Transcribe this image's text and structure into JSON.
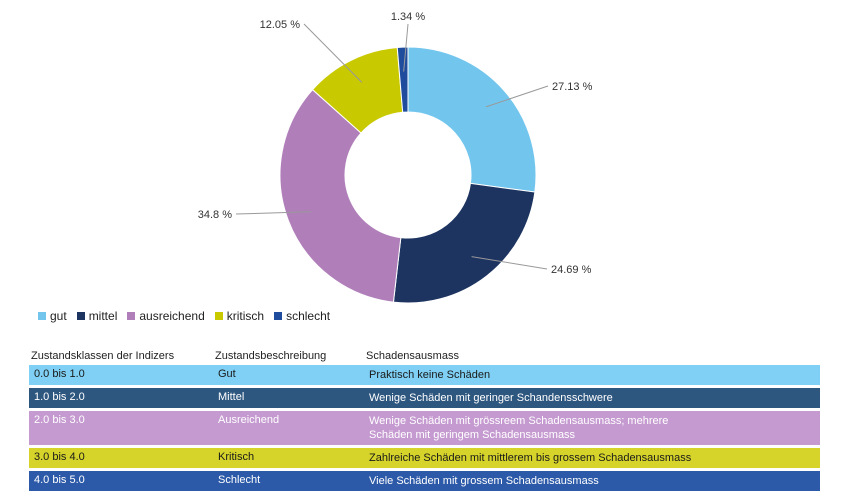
{
  "chart_data": {
    "type": "pie",
    "donut": true,
    "categories": [
      "gut",
      "mittel",
      "ausreichend",
      "kritisch",
      "schlecht"
    ],
    "values": [
      27.13,
      24.69,
      34.8,
      12.05,
      1.34
    ],
    "labels": [
      "27.13 %",
      "24.69 %",
      "34.8 %",
      "12.05 %",
      "1.34 %"
    ],
    "colors": [
      "#72c6ee",
      "#1d3461",
      "#b07fba",
      "#c9c900",
      "#1f4c9c"
    ],
    "legend_position": "bottom-left"
  },
  "legend": [
    {
      "label": "gut",
      "color": "#72c6ee"
    },
    {
      "label": "mittel",
      "color": "#1d3461"
    },
    {
      "label": "ausreichend",
      "color": "#b07fba"
    },
    {
      "label": "kritisch",
      "color": "#c9c900"
    },
    {
      "label": "schlecht",
      "color": "#1f4c9c"
    }
  ],
  "table": {
    "headers": [
      "Zustandsklassen der Indizers",
      "Zustandsbeschreibung",
      "Schadensausmass"
    ],
    "rows": [
      {
        "range": "0.0 bis 1.0",
        "desc": "Gut",
        "damage": "Praktisch keine Schäden",
        "damage2": "",
        "bg": "#7fd0f4",
        "fg": "#1a1a1a"
      },
      {
        "range": "1.0 bis 2.0",
        "desc": "Mittel",
        "damage": "Wenige Schäden mit geringer Schandensschwere",
        "damage2": "",
        "bg": "#2e5780",
        "fg": "#ffffff"
      },
      {
        "range": "2.0 bis 3.0",
        "desc": "Ausreichend",
        "damage": "Wenige Schäden mit grössreem Schadensausmass; mehrere",
        "damage2": "Schäden mit geringem Schadensausmass",
        "bg": "#c59ad0",
        "fg": "#ffffff"
      },
      {
        "range": "3.0 bis 4.0",
        "desc": "Kritisch",
        "damage": "Zahlreiche Schäden mit mittlerem bis grossem Schadensausmass",
        "damage2": "",
        "bg": "#d6d42a",
        "fg": "#1a1a1a"
      },
      {
        "range": "4.0 bis 5.0",
        "desc": "Schlecht",
        "damage": "Viele Schäden mit grossem Schadensausmass",
        "damage2": "",
        "bg": "#2c5aa8",
        "fg": "#ffffff"
      }
    ]
  }
}
